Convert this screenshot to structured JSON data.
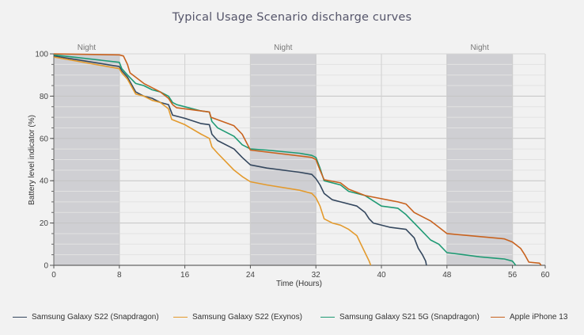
{
  "chart_data": {
    "type": "line",
    "title": "Typical Usage Scenario discharge curves",
    "xlabel": "Time (Hours)",
    "ylabel": "Battery level indicator (%)",
    "xlim": [
      0,
      60
    ],
    "ylim": [
      0,
      100
    ],
    "xticks": [
      0,
      8,
      16,
      24,
      32,
      40,
      48,
      56,
      60
    ],
    "yticks": [
      0,
      20,
      40,
      60,
      80,
      100
    ],
    "grid": true,
    "legend_position": "bottom",
    "bands": [
      {
        "label": "Night",
        "from": 0,
        "to": 8
      },
      {
        "label": "Night",
        "from": 24,
        "to": 32
      },
      {
        "label": "Night",
        "from": 48,
        "to": 56
      }
    ],
    "series": [
      {
        "name": "Samsung Galaxy S22 (Snapdragon)",
        "color": "#34475e",
        "x": [
          0,
          8,
          8.3,
          9,
          10,
          11,
          12,
          13,
          14,
          14.5,
          16,
          18,
          19,
          19.3,
          20,
          22,
          23,
          24,
          26,
          30,
          31.5,
          32,
          32.5,
          33,
          34,
          35,
          37,
          38,
          38.5,
          39,
          41,
          43,
          44,
          44.5,
          45,
          45.4,
          45.5
        ],
        "y": [
          99,
          94,
          92,
          89,
          82,
          80,
          79,
          77,
          76,
          71,
          69.5,
          67,
          66.5,
          62,
          59,
          55,
          51,
          47.5,
          46,
          44,
          43,
          41,
          38,
          34,
          31,
          30,
          28,
          25,
          22,
          20,
          18,
          17,
          13,
          8,
          5,
          2,
          0
        ]
      },
      {
        "name": "Samsung Galaxy S22 (Exynos)",
        "color": "#e39a2d",
        "x": [
          0,
          8,
          8.3,
          9,
          10,
          11,
          12,
          13,
          14,
          14.4,
          16,
          18,
          19,
          19.3,
          20,
          21,
          22,
          23,
          24,
          26,
          30,
          31.5,
          32,
          32.5,
          33,
          34,
          35,
          36,
          37,
          37.5,
          38,
          38.5,
          38.7
        ],
        "y": [
          98.5,
          93,
          91,
          88,
          81,
          80,
          78,
          77,
          74,
          69,
          66.5,
          62,
          60,
          56,
          53,
          49,
          45,
          42,
          39.5,
          38,
          35.5,
          34,
          32,
          28,
          22,
          20,
          19,
          17,
          14,
          10,
          6,
          2,
          0
        ]
      },
      {
        "name": "Samsung Galaxy S21 5G (Snapdragon)",
        "color": "#1f9a74",
        "x": [
          0,
          8,
          8.3,
          9,
          10,
          11,
          12,
          13,
          14,
          14.5,
          15,
          16,
          18,
          19,
          19.3,
          20,
          22,
          23,
          24,
          26,
          30,
          31.5,
          32,
          32.5,
          33,
          35,
          36,
          38,
          40,
          42,
          43,
          43.5,
          44,
          45,
          46,
          47,
          48,
          50,
          52,
          55,
          56,
          56.4
        ],
        "y": [
          99.5,
          96,
          93,
          90,
          86,
          85,
          83,
          82,
          80,
          77,
          76,
          75,
          73,
          72.5,
          68,
          65,
          61,
          57,
          55,
          54.5,
          53,
          52,
          51,
          46,
          40,
          38,
          35,
          33,
          28,
          27,
          24,
          22,
          20,
          16,
          12,
          10,
          6,
          5,
          4,
          3,
          2,
          0
        ]
      },
      {
        "name": "Apple iPhone 13",
        "color": "#c8621e",
        "x": [
          0,
          8,
          8.5,
          9,
          9.3,
          11,
          13,
          14,
          14.5,
          15,
          18,
          19,
          19.2,
          22,
          23,
          24,
          31.5,
          32,
          32.5,
          33,
          35,
          36,
          38,
          42,
          43,
          43.5,
          44,
          46,
          47,
          48,
          55,
          56,
          57,
          57.5,
          58,
          59.3,
          59.5
        ],
        "y": [
          100,
          99.5,
          99,
          95,
          91,
          86,
          82,
          79,
          76,
          74.5,
          73,
          72.5,
          70,
          66,
          62,
          54.5,
          51,
          50,
          45,
          40.5,
          39,
          36,
          33,
          30,
          29,
          27,
          25,
          21,
          18,
          15,
          12.5,
          11,
          8,
          5,
          1.5,
          1,
          0
        ]
      }
    ]
  }
}
